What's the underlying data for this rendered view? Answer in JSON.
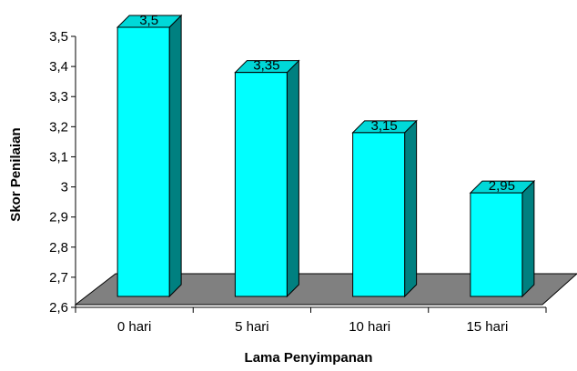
{
  "chart_data": {
    "type": "bar",
    "style": "3d-column",
    "categories": [
      "0 hari",
      "5 hari",
      "10 hari",
      "15 hari"
    ],
    "values": [
      3.5,
      3.35,
      3.15,
      2.95
    ],
    "value_labels": [
      "3,5",
      "3,35",
      "3,15",
      "2,95"
    ],
    "xlabel": "Lama Penyimpanan",
    "ylabel": "Skor Penilaian",
    "ylim": [
      2.6,
      3.5
    ],
    "yticks": [
      2.6,
      2.7,
      2.8,
      2.9,
      3.0,
      3.1,
      3.2,
      3.3,
      3.4,
      3.5
    ],
    "ytick_labels": [
      "2,6",
      "2,7",
      "2,8",
      "2,9",
      "3",
      "3,1",
      "3,2",
      "3,3",
      "3,4",
      "3,5"
    ],
    "grid": false,
    "legend": "none",
    "colors": {
      "bar_front": "#00ffff",
      "bar_side": "#008080",
      "bar_top": "#00d8d8",
      "floor": "#808080",
      "outline": "#000000"
    }
  }
}
